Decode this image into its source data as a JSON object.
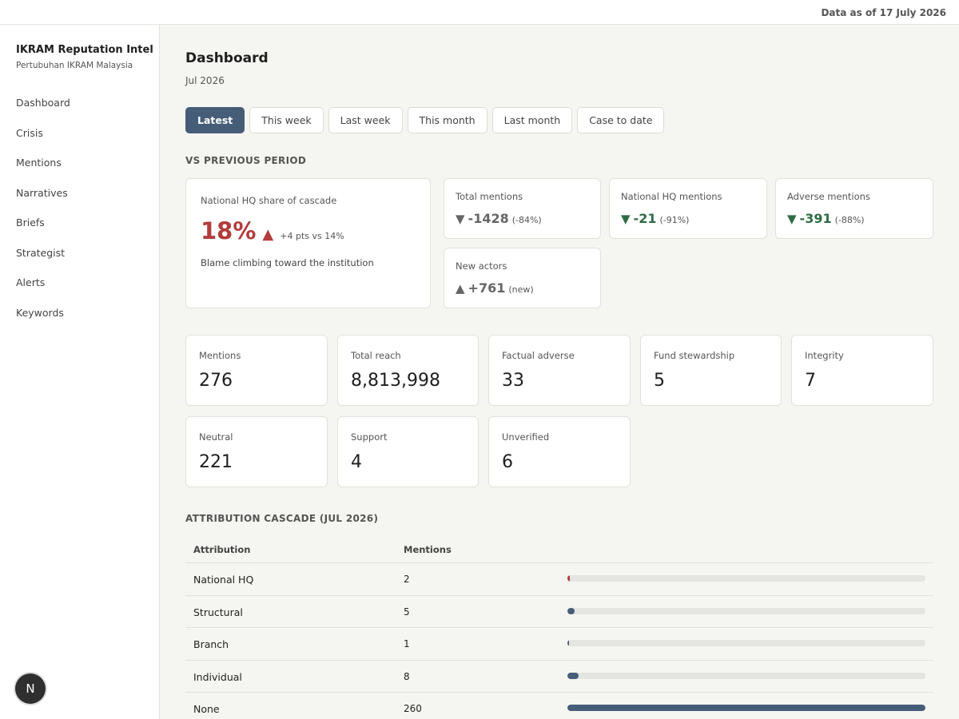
{
  "topbar": {
    "as_of": "Data as of 17 July 2026"
  },
  "sidebar": {
    "title": "IKRAM Reputation Intel",
    "subtitle": "Pertubuhan IKRAM Malaysia",
    "items": [
      {
        "label": "Dashboard"
      },
      {
        "label": "Crisis"
      },
      {
        "label": "Mentions"
      },
      {
        "label": "Narratives"
      },
      {
        "label": "Briefs"
      },
      {
        "label": "Strategist"
      },
      {
        "label": "Alerts"
      },
      {
        "label": "Keywords"
      }
    ],
    "avatar_letter": "N"
  },
  "main": {
    "title": "Dashboard",
    "subtitle": "Jul 2026",
    "tabs": [
      {
        "label": "Latest",
        "active": true
      },
      {
        "label": "This week"
      },
      {
        "label": "Last week"
      },
      {
        "label": "This month"
      },
      {
        "label": "Last month"
      },
      {
        "label": "Case to date"
      }
    ],
    "vs_heading": "VS PREVIOUS PERIOD",
    "hq_share": {
      "label": "National HQ share of cascade",
      "value": "18%",
      "arrow": "▲",
      "note": "+4 pts vs 14%",
      "desc": "Blame climbing toward the institution"
    },
    "deltas": [
      {
        "label": "Total mentions",
        "arrow": "▼",
        "value": "-1428",
        "pct": "(-84%)",
        "color": "grey"
      },
      {
        "label": "National HQ mentions",
        "arrow": "▼",
        "value": "-21",
        "pct": "(-91%)",
        "color": "green"
      },
      {
        "label": "Adverse mentions",
        "arrow": "▼",
        "value": "-391",
        "pct": "(-88%)",
        "color": "green"
      },
      {
        "label": "New actors",
        "arrow": "▲",
        "value": "+761",
        "pct": "(new)",
        "color": "grey"
      }
    ],
    "stats": [
      {
        "label": "Mentions",
        "value": "276"
      },
      {
        "label": "Total reach",
        "value": "8,813,998"
      },
      {
        "label": "Factual adverse",
        "value": "33"
      },
      {
        "label": "Fund stewardship",
        "value": "5"
      },
      {
        "label": "Integrity",
        "value": "7"
      },
      {
        "label": "Neutral",
        "value": "221"
      },
      {
        "label": "Support",
        "value": "4"
      },
      {
        "label": "Unverified",
        "value": "6"
      }
    ],
    "cascade_heading": "ATTRIBUTION CASCADE (JUL 2026)",
    "cascade": {
      "headers": [
        "Attribution",
        "Mentions"
      ],
      "max": 260,
      "rows": [
        {
          "label": "National HQ",
          "value": 2,
          "accent": "#b23c3c"
        },
        {
          "label": "Structural",
          "value": 5
        },
        {
          "label": "Branch",
          "value": 1
        },
        {
          "label": "Individual",
          "value": 8
        },
        {
          "label": "None",
          "value": 260
        }
      ]
    }
  }
}
